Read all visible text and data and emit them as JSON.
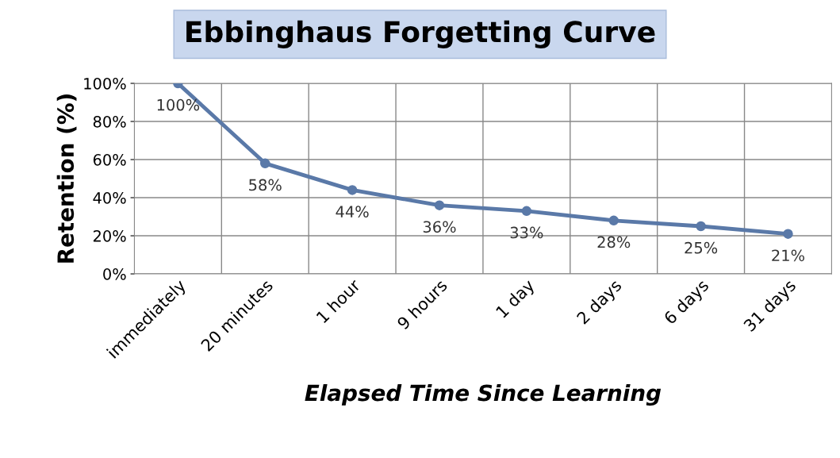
{
  "chart_data": {
    "type": "line",
    "title": "Ebbinghaus Forgetting Curve",
    "xlabel": "Elapsed Time Since Learning",
    "ylabel": "Retention (%)",
    "categories": [
      "immediately",
      "20 minutes",
      "1 hour",
      "9 hours",
      "1 day",
      "2 days",
      "6 days",
      "31 days"
    ],
    "series": [
      {
        "color": "#5a79a8",
        "values": [
          100,
          58,
          44,
          36,
          33,
          28,
          25,
          21
        ],
        "value_labels": [
          "100%",
          "58%",
          "44%",
          "36%",
          "33%",
          "28%",
          "25%",
          "21%"
        ]
      }
    ],
    "ylim": [
      0,
      100
    ],
    "yticks": [
      {
        "value": 0,
        "label": "0%"
      },
      {
        "value": 20,
        "label": "20%"
      },
      {
        "value": 40,
        "label": "40%"
      },
      {
        "value": 60,
        "label": "60%"
      },
      {
        "value": 80,
        "label": "80%"
      },
      {
        "value": 100,
        "label": "100%"
      }
    ],
    "grid": true,
    "marker": "circle",
    "line_style": "solid",
    "legend": false
  }
}
